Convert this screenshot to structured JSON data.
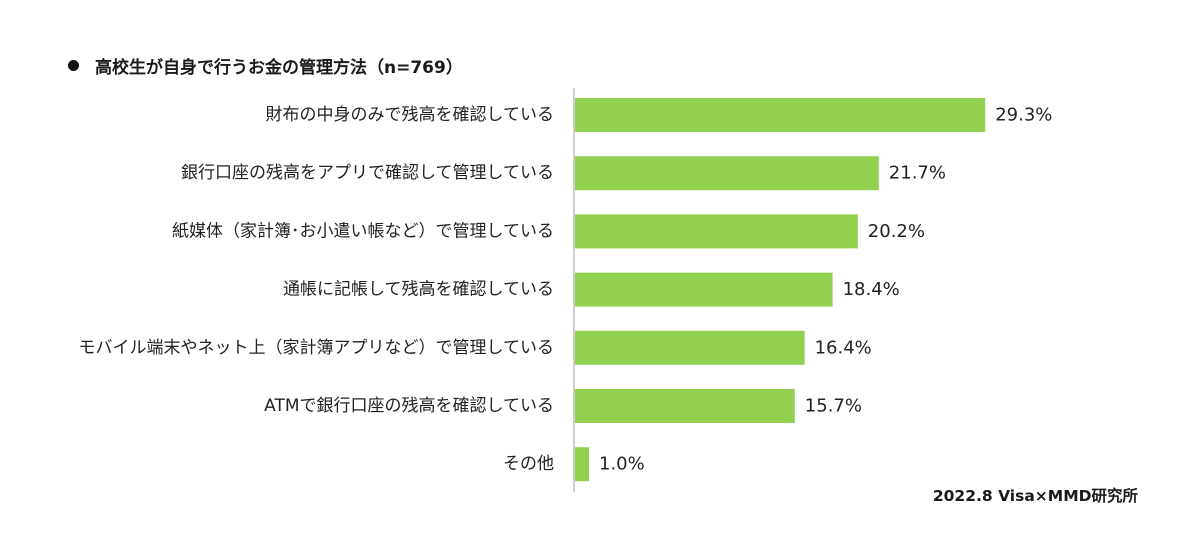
{
  "chart_data": {
    "type": "bar",
    "orientation": "horizontal",
    "title": "高校生が自身で行うお金の管理方法（n=769）",
    "categories": [
      "財布の中身のみで残高を確認している",
      "銀行口座の残高をアプリで確認して管理している",
      "紙媒体（家計簿･お小遣い帳など）で管理している",
      "通帳に記帳して残高を確認している",
      "モバイル端末やネット上（家計簿アプリなど）で管理している",
      "ATMで銀行口座の残高を確認している",
      "その他"
    ],
    "values": [
      29.3,
      21.7,
      20.2,
      18.4,
      16.4,
      15.7,
      1.0
    ],
    "value_labels": [
      "29.3%",
      "21.7%",
      "20.2%",
      "18.4%",
      "16.4%",
      "15.7%",
      "1.0%"
    ],
    "unit": "%",
    "xlim": [
      0,
      35
    ],
    "bar_color": "#92d050",
    "axis_color": "#bfbfbf",
    "grid": false,
    "legend": "none",
    "source": "2022.8 Visa×MMD研究所"
  }
}
